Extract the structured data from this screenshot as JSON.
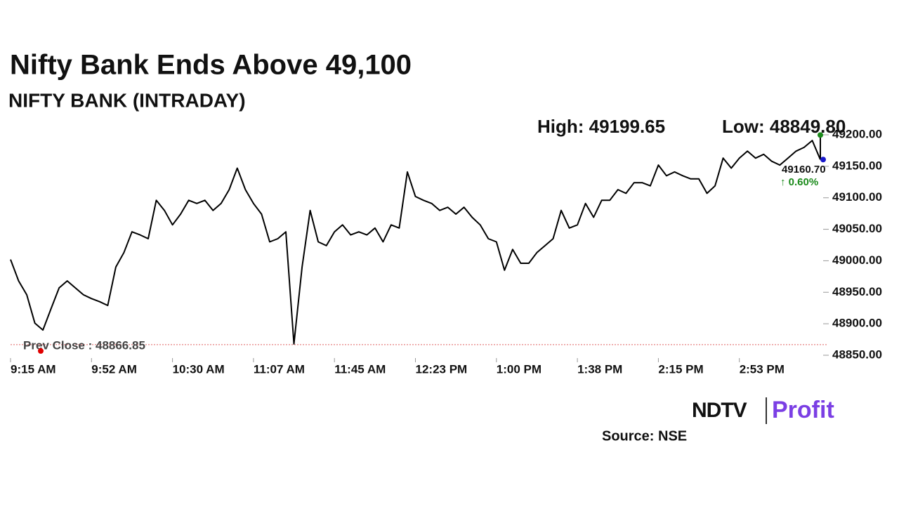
{
  "chart_data": {
    "type": "line",
    "title": "Nifty Bank Ends Above 49,100",
    "subtitle": "NIFTY BANK (INTRADAY)",
    "categories": [
      "9:15 AM",
      null,
      null,
      null,
      null,
      null,
      null,
      null,
      null,
      null,
      "9:52 AM",
      null,
      null,
      null,
      null,
      null,
      null,
      null,
      null,
      null,
      "10:30 AM",
      null,
      null,
      null,
      null,
      null,
      null,
      null,
      null,
      null,
      "11:07 AM",
      null,
      null,
      null,
      null,
      null,
      null,
      null,
      null,
      null,
      "11:45 AM",
      null,
      null,
      null,
      null,
      null,
      null,
      null,
      null,
      null,
      "12:23 PM",
      null,
      null,
      null,
      null,
      null,
      null,
      null,
      null,
      null,
      "1:00 PM",
      null,
      null,
      null,
      null,
      null,
      null,
      null,
      null,
      null,
      "1:38 PM",
      null,
      null,
      null,
      null,
      null,
      null,
      null,
      null,
      null,
      "2:15 PM",
      null,
      null,
      null,
      null,
      null,
      null,
      null,
      null,
      null,
      "2:53 PM",
      null,
      null,
      null,
      null,
      null,
      null,
      null,
      null,
      null,
      null
    ],
    "series": [
      {
        "name": "NIFTY BANK",
        "color": "#000000",
        "values": [
          49002,
          48968,
          48946,
          48901,
          48890,
          48924,
          48957,
          48968,
          48957,
          48946,
          48940,
          48935,
          48929,
          48990,
          49013,
          49046,
          49041,
          49035,
          49096,
          49080,
          49057,
          49074,
          49096,
          49091,
          49096,
          49080,
          49091,
          49113,
          49147,
          49113,
          49091,
          49074,
          49030,
          49035,
          49046,
          48868,
          48990,
          49080,
          49030,
          49024,
          49046,
          49057,
          49041,
          49046,
          49041,
          49052,
          49030,
          49057,
          49052,
          49141,
          49102,
          49096,
          49091,
          49080,
          49085,
          49074,
          49085,
          49069,
          49057,
          49035,
          49030,
          48985,
          49018,
          48996,
          48996,
          49013,
          49024,
          49035,
          49080,
          49052,
          49057,
          49091,
          49069,
          49096,
          49096,
          49113,
          49107,
          49124,
          49124,
          49119,
          49152,
          49135,
          49141,
          49135,
          49130,
          49130,
          49107,
          49119,
          49163,
          49147,
          49163,
          49174,
          49163,
          49169,
          49158,
          49152,
          49163,
          49174,
          49180,
          49191,
          49160.7
        ]
      }
    ],
    "ylim": [
      48850,
      49200
    ],
    "yticks": [
      {
        "value": 48850,
        "label": "48850.00"
      },
      {
        "value": 48900,
        "label": "48900.00"
      },
      {
        "value": 48950,
        "label": "48950.00"
      },
      {
        "value": 49000,
        "label": "49000.00"
      },
      {
        "value": 49050,
        "label": "49050.00"
      },
      {
        "value": 49100,
        "label": "49100.00"
      },
      {
        "value": 49150,
        "label": "49150.00"
      },
      {
        "value": 49200,
        "label": "49200.00"
      }
    ],
    "prev_close": {
      "value": 48866.85,
      "label": "Prev Close : 48866.85"
    },
    "high": {
      "value": 49199.65,
      "label": "High: 49199.65"
    },
    "low": {
      "value": 48849.8,
      "label": "Low: 48849.80"
    },
    "last": {
      "value": 49160.7,
      "label": "49160.70"
    },
    "change": {
      "value": 0.6,
      "label": "↑ 0.60%"
    },
    "brand": {
      "left": "NDTV",
      "right": "Profit"
    },
    "source": "Source: NSE"
  }
}
